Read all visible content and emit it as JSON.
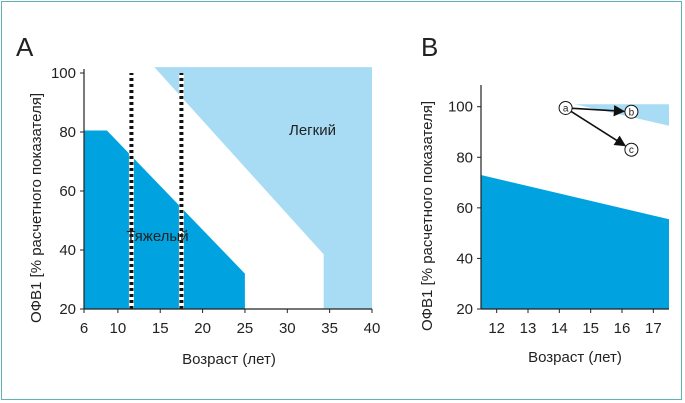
{
  "colors": {
    "severe": "#00a3e0",
    "mild": "#a8dcf5",
    "axis": "#222222",
    "frame_border": "#5fb3b3"
  },
  "chart_data": [
    {
      "panel": "A",
      "type": "area",
      "xlabel": "Возраст (лет)",
      "ylabel": "ОФВ1 [% расчетного показателя]",
      "xlim": [
        6,
        40
      ],
      "ylim": [
        20,
        100
      ],
      "xticks": [
        6,
        10,
        15,
        20,
        25,
        30,
        35,
        40
      ],
      "yticks": [
        20,
        40,
        60,
        80,
        100
      ],
      "xtick_labels": [
        "6",
        "10",
        "15",
        "20",
        "25",
        "30",
        "35",
        "40"
      ],
      "ytick_labels": [
        "20",
        "40",
        "60",
        "80",
        "100"
      ],
      "regions": [
        {
          "name": "Тяжелый",
          "color": "severe",
          "polygon": [
            [
              6,
              20
            ],
            [
              6,
              80.5
            ],
            [
              8.7,
              80.5
            ],
            [
              25,
              32
            ],
            [
              25,
              20
            ]
          ],
          "label_at": [
            11,
            43
          ]
        },
        {
          "name": "Легкий",
          "color": "mild",
          "polygon": [
            [
              14.3,
              102
            ],
            [
              40,
              102
            ],
            [
              40,
              20
            ],
            [
              34.3,
              20
            ],
            [
              34.3,
              38.5
            ]
          ],
          "label_at": [
            30.2,
            79
          ]
        }
      ],
      "vertical_dashed_lines": [
        11.6,
        17.5
      ],
      "grid": false,
      "legend": "none"
    },
    {
      "panel": "B",
      "type": "area",
      "xlabel": "Возраст (лет)",
      "ylabel": "ОФВ1 [% расчетного показателя]",
      "xlim": [
        11.5,
        17.5
      ],
      "ylim": [
        20,
        107
      ],
      "xticks": [
        12,
        13,
        14,
        15,
        16,
        17
      ],
      "yticks": [
        20,
        40,
        60,
        80,
        100
      ],
      "xtick_labels": [
        "12",
        "13",
        "14",
        "15",
        "16",
        "17"
      ],
      "ytick_labels": [
        "20",
        "40",
        "60",
        "80",
        "100"
      ],
      "regions": [
        {
          "name": "",
          "color": "severe",
          "polygon": [
            [
              11.5,
              73
            ],
            [
              17.5,
              55.5
            ],
            [
              17.5,
              20
            ],
            [
              11.5,
              20
            ]
          ]
        },
        {
          "name": "",
          "color": "mild",
          "polygon": [
            [
              14.5,
              101
            ],
            [
              17.5,
              101
            ],
            [
              17.5,
              92.5
            ]
          ]
        }
      ],
      "markers": [
        {
          "label": "a",
          "x": 14.2,
          "y": 99.5
        },
        {
          "label": "b",
          "x": 16.3,
          "y": 98
        },
        {
          "label": "c",
          "x": 16.3,
          "y": 83
        }
      ],
      "arrows": [
        {
          "from": "a",
          "to": "b"
        },
        {
          "from": "a",
          "to": "c"
        }
      ],
      "grid": false,
      "legend": "none"
    }
  ]
}
